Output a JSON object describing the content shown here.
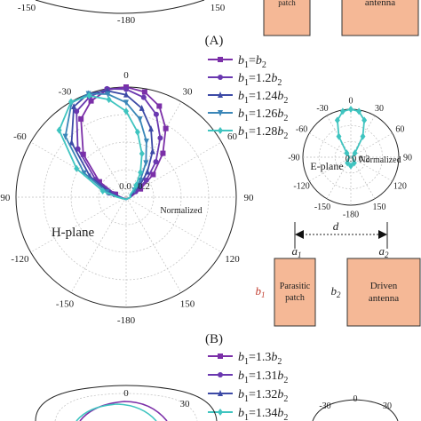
{
  "panel_labels": {
    "A": "(A)",
    "B": "(B)"
  },
  "top_remnant": {
    "tick_left": "-150",
    "tick_right": "150",
    "tick_bottom": "-180",
    "patch_label": "patch",
    "antenna_label": "antenna"
  },
  "panel_B": {
    "h_plane_label": "H-plane",
    "normalized_label": "Normalized",
    "radial_ticks": [
      "0.0",
      "0.2"
    ],
    "angle_ticks": [
      "0",
      "30",
      "60",
      "90",
      "120",
      "150",
      "-180",
      "-150",
      "-120",
      "-90",
      "-60",
      "-30"
    ],
    "e_plane": {
      "label": "E-plane",
      "normalized_label": "Normalized",
      "radial_ticks": [
        "0.0",
        "0.2"
      ],
      "angle_ticks": [
        "0",
        "30",
        "60",
        "90",
        "120",
        "150",
        "-180",
        "-150",
        "-120",
        "-90",
        "-60",
        "-30"
      ]
    },
    "legend": [
      {
        "b1": "b",
        "sub1": "1",
        "eq": "=",
        "coef": "",
        "b2": "b",
        "sub2": "2"
      },
      {
        "b1": "b",
        "sub1": "1",
        "eq": "=",
        "coef": "1.2",
        "b2": "b",
        "sub2": "2"
      },
      {
        "b1": "b",
        "sub1": "1",
        "eq": "=",
        "coef": "1.24",
        "b2": "b",
        "sub2": "2"
      },
      {
        "b1": "b",
        "sub1": "1",
        "eq": "=",
        "coef": "1.26",
        "b2": "b",
        "sub2": "2"
      },
      {
        "b1": "b",
        "sub1": "1",
        "eq": "=",
        "coef": "1.28",
        "b2": "b",
        "sub2": "2"
      }
    ],
    "diagram": {
      "d_label": "d",
      "a1_label": "a",
      "a1_sub": "1",
      "a2_label": "a",
      "a2_sub": "2",
      "b1_label": "b",
      "b1_sub": "1",
      "b2_label": "b",
      "b2_sub": "2",
      "parasitic_line1": "Parasitic",
      "parasitic_line2": "patch",
      "driven_line1": "Driven",
      "driven_line2": "antenna"
    }
  },
  "panel_C_partial": {
    "legend": [
      {
        "b1": "b",
        "sub1": "1",
        "eq": "=",
        "coef": "1.3",
        "b2": "b",
        "sub2": "2"
      },
      {
        "b1": "b",
        "sub1": "1",
        "eq": "=",
        "coef": "1.31",
        "b2": "b",
        "sub2": "2"
      },
      {
        "b1": "b",
        "sub1": "1",
        "eq": "=",
        "coef": "1.32",
        "b2": "b",
        "sub2": "2"
      },
      {
        "b1": "b",
        "sub1": "1",
        "eq": "=",
        "coef": "1.34",
        "b2": "b",
        "sub2": "2"
      }
    ],
    "angle_ticks_visible": [
      "0",
      "30",
      "-30",
      "0",
      "30"
    ]
  },
  "colors": {
    "series": [
      "#7b2fa8",
      "#6a38b0",
      "#3d4aa6",
      "#3a86b8",
      "#3fc4c0"
    ],
    "patch_fill": "#f5b896",
    "patch_stroke": "#333333",
    "b1_red": "#c0392b",
    "grid": "#bfbfbf",
    "axis": "#222222"
  },
  "chart_data": [
    {
      "type": "polar-line",
      "plane": "H-plane",
      "angle_unit": "deg",
      "series": [
        {
          "name": "b1=b2",
          "marker": "square",
          "theta": [
            -90,
            -75,
            -60,
            -45,
            -30,
            -20,
            -10,
            0,
            10,
            20,
            30,
            40,
            50,
            60,
            75,
            90,
            180
          ],
          "r": [
            0.05,
            0.1,
            0.28,
            0.55,
            0.82,
            0.93,
            0.99,
            1.0,
            0.97,
            0.88,
            0.72,
            0.52,
            0.32,
            0.15,
            0.06,
            0.04,
            0.02
          ]
        },
        {
          "name": "b1=1.2b2",
          "marker": "circle",
          "theta": [
            -90,
            -75,
            -60,
            -45,
            -30,
            -20,
            -10,
            0,
            10,
            20,
            30,
            40,
            50,
            60,
            75,
            90,
            180
          ],
          "r": [
            0.05,
            0.12,
            0.32,
            0.62,
            0.9,
            0.97,
            1.0,
            0.98,
            0.92,
            0.8,
            0.62,
            0.42,
            0.24,
            0.1,
            0.05,
            0.04,
            0.02
          ]
        },
        {
          "name": "b1=1.24b2",
          "marker": "triangle",
          "theta": [
            -90,
            -75,
            -60,
            -45,
            -30,
            -20,
            -10,
            0,
            10,
            20,
            30,
            40,
            50,
            60,
            75,
            90,
            180
          ],
          "r": [
            0.06,
            0.15,
            0.38,
            0.7,
            0.95,
            1.0,
            0.98,
            0.93,
            0.82,
            0.66,
            0.48,
            0.3,
            0.16,
            0.07,
            0.04,
            0.04,
            0.02
          ]
        },
        {
          "name": "b1=1.26b2",
          "marker": "triangle-down",
          "theta": [
            -90,
            -75,
            -60,
            -45,
            -30,
            -20,
            -10,
            0,
            10,
            20,
            30,
            40,
            50,
            60,
            75,
            90,
            180
          ],
          "r": [
            0.07,
            0.18,
            0.44,
            0.78,
            0.99,
            1.0,
            0.95,
            0.86,
            0.72,
            0.54,
            0.36,
            0.2,
            0.1,
            0.05,
            0.04,
            0.04,
            0.02
          ]
        },
        {
          "name": "b1=1.28b2",
          "marker": "diamond",
          "theta": [
            -90,
            -75,
            -60,
            -45,
            -30,
            -20,
            -10,
            0,
            10,
            20,
            30,
            40,
            50,
            60,
            75,
            90,
            180
          ],
          "r": [
            0.08,
            0.22,
            0.52,
            0.86,
            1.0,
            0.98,
            0.9,
            0.78,
            0.6,
            0.42,
            0.26,
            0.14,
            0.07,
            0.04,
            0.04,
            0.04,
            0.02
          ]
        }
      ],
      "radial_range": [
        0,
        1
      ],
      "grid": true
    },
    {
      "type": "polar-line",
      "plane": "E-plane",
      "angle_unit": "deg",
      "series": [
        {
          "name": "b1=1.28b2",
          "marker": "diamond",
          "theta": [
            -90,
            -60,
            -45,
            -30,
            -20,
            -10,
            0,
            10,
            20,
            30,
            45,
            60,
            90,
            120,
            150,
            180,
            -150,
            -120
          ],
          "r": [
            0.03,
            0.05,
            0.12,
            0.5,
            0.82,
            0.97,
            1.0,
            0.97,
            0.82,
            0.5,
            0.12,
            0.05,
            0.03,
            0.06,
            0.14,
            0.18,
            0.14,
            0.06
          ]
        }
      ],
      "radial_range": [
        0,
        1
      ],
      "grid": true
    }
  ]
}
